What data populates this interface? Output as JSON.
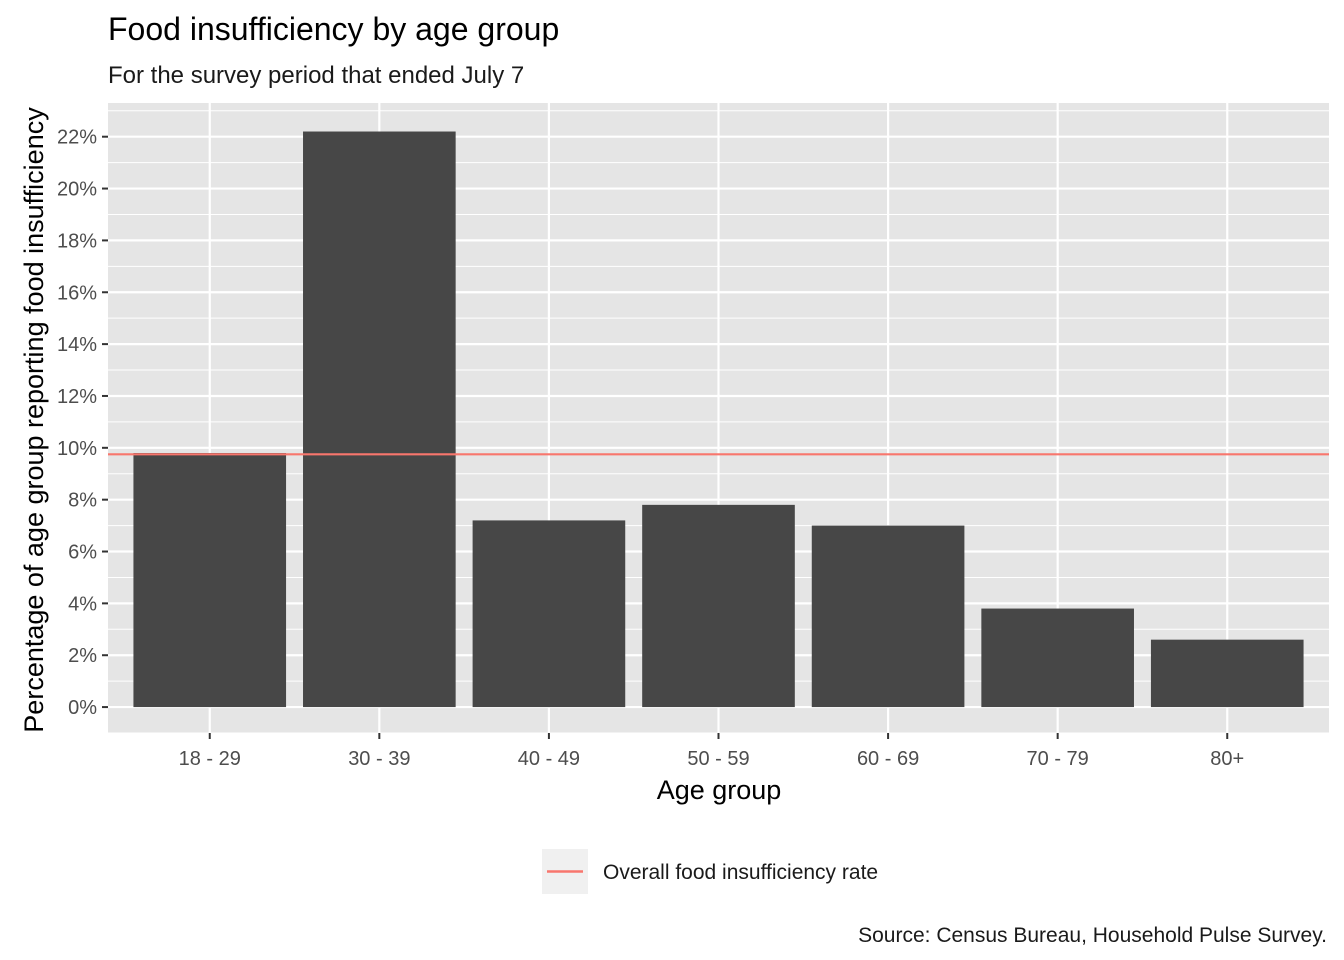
{
  "chart_data": {
    "type": "bar",
    "title": "Food insufficiency by age group",
    "subtitle": "For the survey period that ended July 7",
    "xlabel": "Age group",
    "ylabel": "Percentage of age group reporting food insufficiency",
    "categories": [
      "18 - 29",
      "30 - 39",
      "40 - 49",
      "50 - 59",
      "60 - 69",
      "70 - 79",
      "80+"
    ],
    "values": [
      9.8,
      22.2,
      7.2,
      7.8,
      7.0,
      3.8,
      2.6
    ],
    "ylim": [
      -1,
      23.3
    ],
    "yticks": [
      0,
      2,
      4,
      6,
      8,
      10,
      12,
      14,
      16,
      18,
      20,
      22
    ],
    "ytick_suffix": "%",
    "reference_line": {
      "value": 9.75,
      "label": "Overall food insufficiency rate",
      "color": "#f8766d"
    },
    "legend_position": "bottom",
    "grid": true,
    "caption": "Source: Census Bureau, Household Pulse Survey.",
    "colors": {
      "bar": "#474747",
      "panel": "#e5e5e5",
      "grid": "#ffffff",
      "legend_key": "#f0f0f0"
    }
  }
}
